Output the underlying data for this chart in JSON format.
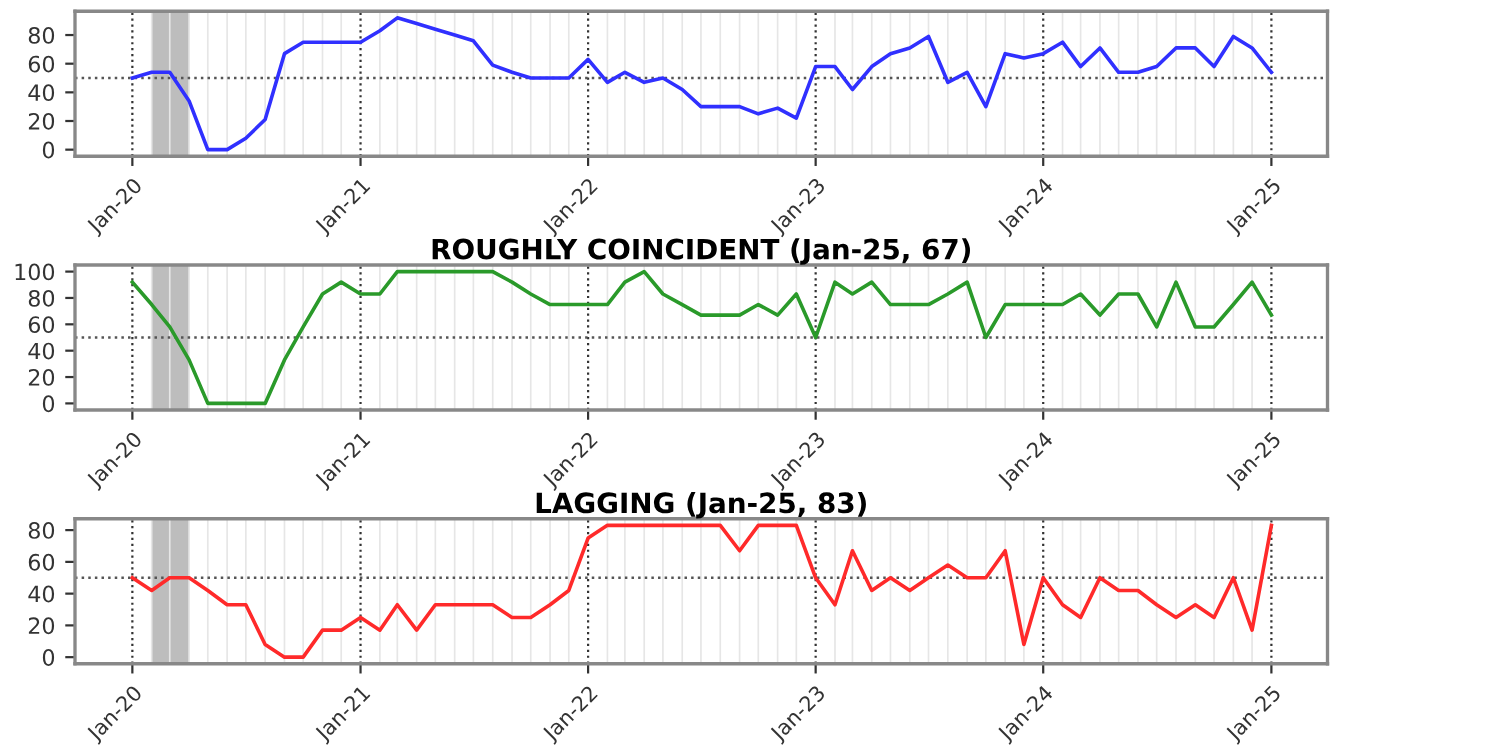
{
  "chart_data": [
    {
      "type": "line",
      "x": [
        "2020-01",
        "2020-02",
        "2020-03",
        "2020-04",
        "2020-05",
        "2020-06",
        "2020-07",
        "2020-08",
        "2020-09",
        "2020-10",
        "2020-11",
        "2020-12",
        "2021-01",
        "2021-02",
        "2021-03",
        "2021-04",
        "2021-05",
        "2021-06",
        "2021-07",
        "2021-08",
        "2021-09",
        "2021-10",
        "2021-11",
        "2021-12",
        "2022-01",
        "2022-02",
        "2022-03",
        "2022-04",
        "2022-05",
        "2022-06",
        "2022-07",
        "2022-08",
        "2022-09",
        "2022-10",
        "2022-11",
        "2022-12",
        "2023-01",
        "2023-02",
        "2023-03",
        "2023-04",
        "2023-05",
        "2023-06",
        "2023-07",
        "2023-08",
        "2023-09",
        "2023-10",
        "2023-11",
        "2023-12",
        "2024-01",
        "2024-02",
        "2024-03",
        "2024-04",
        "2024-05",
        "2024-06",
        "2024-07",
        "2024-08",
        "2024-09",
        "2024-10",
        "2024-11",
        "2024-12",
        "2025-01"
      ],
      "series": [
        {
          "color": "#3030ff",
          "values": [
            50,
            54,
            54,
            34,
            0,
            0,
            8,
            21,
            67,
            75,
            75,
            75,
            75,
            83,
            92,
            88,
            84,
            80,
            76,
            59,
            54,
            50,
            50,
            50,
            63,
            47,
            54,
            47,
            50,
            42,
            30,
            30,
            30,
            25,
            29,
            22,
            58,
            58,
            42,
            58,
            67,
            71,
            79,
            47,
            54,
            30,
            67,
            64,
            67,
            75,
            58,
            71,
            54,
            54,
            58,
            71,
            71,
            58,
            79,
            71,
            54
          ]
        }
      ],
      "xlim": [
        "2019-10",
        "2025-04"
      ],
      "xticks": [
        {
          "value": "2020-01",
          "label": "Jan-20"
        },
        {
          "value": "2021-01",
          "label": "Jan-21"
        },
        {
          "value": "2022-01",
          "label": "Jan-22"
        },
        {
          "value": "2023-01",
          "label": "Jan-23"
        },
        {
          "value": "2024-01",
          "label": "Jan-24"
        },
        {
          "value": "2025-01",
          "label": "Jan-25"
        }
      ],
      "ylim": [
        -4.6,
        96.6
      ],
      "yticks": [
        0,
        20,
        40,
        60,
        80
      ],
      "ref_lines": [
        {
          "axis": "y",
          "value": 50,
          "color": "#555555",
          "line_style": "dotted"
        }
      ],
      "bands": [
        {
          "axis": "x",
          "from": "2020-02",
          "to": "2020-04",
          "color": "#bdbdbd"
        }
      ],
      "grid": "x"
    },
    {
      "type": "line",
      "title": "ROUGHLY COINCIDENT (Jan-25, 67)",
      "x": [
        "2020-01",
        "2020-02",
        "2020-03",
        "2020-04",
        "2020-05",
        "2020-06",
        "2020-07",
        "2020-08",
        "2020-09",
        "2020-10",
        "2020-11",
        "2020-12",
        "2021-01",
        "2021-02",
        "2021-03",
        "2021-04",
        "2021-05",
        "2021-06",
        "2021-07",
        "2021-08",
        "2021-09",
        "2021-10",
        "2021-11",
        "2021-12",
        "2022-01",
        "2022-02",
        "2022-03",
        "2022-04",
        "2022-05",
        "2022-06",
        "2022-07",
        "2022-08",
        "2022-09",
        "2022-10",
        "2022-11",
        "2022-12",
        "2023-01",
        "2023-02",
        "2023-03",
        "2023-04",
        "2023-05",
        "2023-06",
        "2023-07",
        "2023-08",
        "2023-09",
        "2023-10",
        "2023-11",
        "2023-12",
        "2024-01",
        "2024-02",
        "2024-03",
        "2024-04",
        "2024-05",
        "2024-06",
        "2024-07",
        "2024-08",
        "2024-09",
        "2024-10",
        "2024-11",
        "2024-12",
        "2025-01"
      ],
      "series": [
        {
          "color": "#2a9a2a",
          "values": [
            92,
            75,
            58,
            33,
            0,
            0,
            0,
            0,
            33,
            58,
            83,
            92,
            83,
            83,
            100,
            100,
            100,
            100,
            100,
            100,
            92,
            83,
            75,
            75,
            75,
            75,
            92,
            100,
            83,
            75,
            67,
            67,
            67,
            75,
            67,
            83,
            50,
            92,
            83,
            92,
            75,
            75,
            75,
            83,
            92,
            50,
            75,
            75,
            75,
            75,
            83,
            67,
            83,
            83,
            58,
            92,
            58,
            58,
            75,
            92,
            67
          ]
        }
      ],
      "xlim": [
        "2019-10",
        "2025-04"
      ],
      "xticks": [
        {
          "value": "2020-01",
          "label": "Jan-20"
        },
        {
          "value": "2021-01",
          "label": "Jan-21"
        },
        {
          "value": "2022-01",
          "label": "Jan-22"
        },
        {
          "value": "2023-01",
          "label": "Jan-23"
        },
        {
          "value": "2024-01",
          "label": "Jan-24"
        },
        {
          "value": "2025-01",
          "label": "Jan-25"
        }
      ],
      "ylim": [
        -5,
        105
      ],
      "yticks": [
        0,
        20,
        40,
        60,
        80,
        100
      ],
      "ref_lines": [
        {
          "axis": "y",
          "value": 50,
          "color": "#555555",
          "line_style": "dotted"
        }
      ],
      "bands": [
        {
          "axis": "x",
          "from": "2020-02",
          "to": "2020-04",
          "color": "#bdbdbd"
        }
      ],
      "grid": "x"
    },
    {
      "type": "line",
      "title": "LAGGING (Jan-25, 83)",
      "x": [
        "2020-01",
        "2020-02",
        "2020-03",
        "2020-04",
        "2020-05",
        "2020-06",
        "2020-07",
        "2020-08",
        "2020-09",
        "2020-10",
        "2020-11",
        "2020-12",
        "2021-01",
        "2021-02",
        "2021-03",
        "2021-04",
        "2021-05",
        "2021-06",
        "2021-07",
        "2021-08",
        "2021-09",
        "2021-10",
        "2021-11",
        "2021-12",
        "2022-01",
        "2022-02",
        "2022-03",
        "2022-04",
        "2022-05",
        "2022-06",
        "2022-07",
        "2022-08",
        "2022-09",
        "2022-10",
        "2022-11",
        "2022-12",
        "2023-01",
        "2023-02",
        "2023-03",
        "2023-04",
        "2023-05",
        "2023-06",
        "2023-07",
        "2023-08",
        "2023-09",
        "2023-10",
        "2023-11",
        "2023-12",
        "2024-01",
        "2024-02",
        "2024-03",
        "2024-04",
        "2024-05",
        "2024-06",
        "2024-07",
        "2024-08",
        "2024-09",
        "2024-10",
        "2024-11",
        "2024-12",
        "2025-01"
      ],
      "series": [
        {
          "color": "#ff2a2a",
          "values": [
            50,
            42,
            50,
            50,
            42,
            33,
            33,
            8,
            0,
            0,
            17,
            17,
            25,
            17,
            33,
            17,
            33,
            33,
            33,
            33,
            25,
            25,
            33,
            42,
            75,
            83,
            83,
            83,
            83,
            83,
            83,
            83,
            67,
            83,
            83,
            83,
            50,
            33,
            67,
            42,
            50,
            42,
            50,
            58,
            50,
            50,
            67,
            8,
            50,
            33,
            25,
            50,
            42,
            42,
            33,
            25,
            33,
            25,
            50,
            17,
            83
          ]
        }
      ],
      "xlim": [
        "2019-10",
        "2025-04"
      ],
      "xticks": [
        {
          "value": "2020-01",
          "label": "Jan-20"
        },
        {
          "value": "2021-01",
          "label": "Jan-21"
        },
        {
          "value": "2022-01",
          "label": "Jan-22"
        },
        {
          "value": "2023-01",
          "label": "Jan-23"
        },
        {
          "value": "2024-01",
          "label": "Jan-24"
        },
        {
          "value": "2025-01",
          "label": "Jan-25"
        }
      ],
      "ylim": [
        -4.15,
        87.15
      ],
      "yticks": [
        0,
        20,
        40,
        60,
        80
      ],
      "ref_lines": [
        {
          "axis": "y",
          "value": 50,
          "color": "#555555",
          "line_style": "dotted"
        }
      ],
      "bands": [
        {
          "axis": "x",
          "from": "2020-02",
          "to": "2020-04",
          "color": "#bdbdbd"
        }
      ],
      "grid": "x"
    }
  ]
}
